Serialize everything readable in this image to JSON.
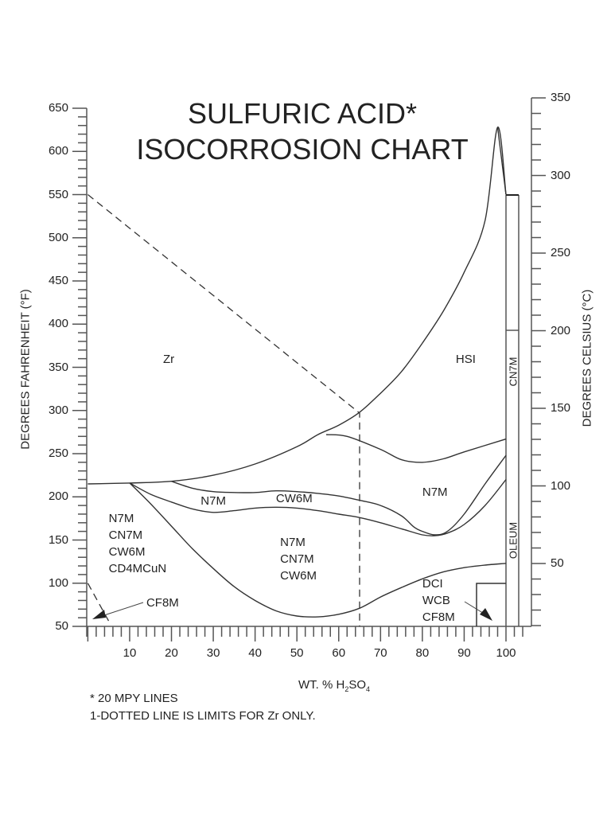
{
  "chart_data": {
    "type": "line",
    "title": "SULFURIC ACID* ISOCORROSION CHART",
    "title_lines": [
      "SULFURIC ACID*",
      "ISOCORROSION CHART"
    ],
    "xlabel": "WT. % H2SO4",
    "xlabel_parts": {
      "prefix": "WT. % H",
      "sub1": "2",
      "mid": "SO",
      "sub2": "4"
    },
    "ylabel": "DEGREES FAHRENHEIT (°F)",
    "ylabel_right": "DEGREES CELSIUS (°C)",
    "xlim": [
      0,
      105
    ],
    "ylim": [
      50,
      650
    ],
    "ylim_right": [
      10,
      350
    ],
    "x_ticks": [
      10,
      20,
      30,
      40,
      50,
      60,
      70,
      80,
      90,
      100
    ],
    "y_ticks": [
      50,
      100,
      150,
      200,
      250,
      300,
      350,
      400,
      450,
      500,
      550,
      600,
      650
    ],
    "y_ticks_right": [
      50,
      100,
      150,
      200,
      250,
      300,
      350
    ],
    "grid": false,
    "notes": [
      "* 20 MPY LINES",
      "1-DOTTED LINE IS LIMITS FOR Zr ONLY."
    ],
    "region_labels": [
      {
        "text": [
          "Zr"
        ],
        "x": 18,
        "y": 360
      },
      {
        "text": [
          "HSI"
        ],
        "x": 88,
        "y": 360
      },
      {
        "text": [
          "N7M"
        ],
        "x": 27,
        "y": 196
      },
      {
        "text": [
          "CW6M"
        ],
        "x": 45,
        "y": 198
      },
      {
        "text": [
          "N7M"
        ],
        "x": 80,
        "y": 206
      },
      {
        "text": [
          "N7M",
          "CN7M",
          "CW6M",
          "CD4MCuN"
        ],
        "x": 5,
        "y": 175
      },
      {
        "text": [
          "N7M",
          "CN7M",
          "CW6M"
        ],
        "x": 46,
        "y": 148
      },
      {
        "text": [
          "CF8M"
        ],
        "x": 14,
        "y": 78
      },
      {
        "text": [
          "DCI",
          "WCB",
          "CF8M"
        ],
        "x": 80,
        "y": 100
      },
      {
        "text": [
          "CN7M"
        ],
        "x": 101,
        "y": 345,
        "vertical": true
      },
      {
        "text": [
          "OLEUM"
        ],
        "x": 101,
        "y": 150,
        "vertical": true
      }
    ],
    "series": [
      {
        "name": "Zr / HSI boundary (20 mpy)",
        "style": "solid",
        "x": [
          0,
          10,
          20,
          30,
          40,
          50,
          55,
          60,
          65,
          70,
          75,
          80,
          85,
          90,
          95,
          98,
          100
        ],
        "y": [
          215,
          216,
          218,
          225,
          238,
          258,
          272,
          283,
          298,
          320,
          345,
          378,
          415,
          460,
          520,
          628,
          550
        ]
      },
      {
        "name": "Zr limit (dashed)",
        "style": "dashed",
        "x": [
          0,
          65,
          65
        ],
        "y": [
          550,
          297,
          50
        ]
      },
      {
        "name": "Zr limit low (dashed)",
        "style": "dashed",
        "x": [
          0,
          5
        ],
        "y": [
          100,
          56
        ]
      },
      {
        "name": "N7M upper (right)",
        "style": "solid",
        "x": [
          57,
          62,
          70,
          75,
          80,
          85,
          90,
          100
        ],
        "y": [
          272,
          270,
          255,
          243,
          240,
          244,
          252,
          267
        ]
      },
      {
        "name": "CW6M upper",
        "style": "solid",
        "x": [
          20,
          25,
          30,
          35,
          40,
          45,
          50,
          55,
          60,
          65,
          70,
          75,
          78,
          80,
          83,
          86,
          90,
          95,
          100
        ],
        "y": [
          218,
          210,
          206,
          205,
          205,
          207,
          206,
          204,
          201,
          196,
          190,
          178,
          165,
          160,
          156,
          160,
          180,
          215,
          248
        ]
      },
      {
        "name": "N7M / CW6M lower",
        "style": "solid",
        "x": [
          10,
          15,
          20,
          25,
          30,
          35,
          40,
          45,
          50,
          55,
          60,
          65,
          70,
          75,
          80,
          83,
          86,
          90,
          95,
          100
        ],
        "y": [
          216,
          203,
          194,
          186,
          182,
          184,
          187,
          188,
          187,
          184,
          180,
          176,
          170,
          163,
          156,
          155,
          158,
          168,
          190,
          220
        ]
      },
      {
        "name": "CD4MCuN / CF8M boundary",
        "style": "solid",
        "x": [
          10,
          15,
          20,
          25,
          30,
          35,
          40,
          45,
          50,
          55,
          60,
          65,
          70,
          75,
          80,
          85,
          90,
          95,
          100
        ],
        "y": [
          216,
          192,
          166,
          140,
          117,
          96,
          80,
          68,
          62,
          61,
          64,
          71,
          84,
          95,
          105,
          113,
          118,
          121,
          123
        ]
      },
      {
        "name": "HSI cusp",
        "style": "solid",
        "x": [
          98,
          100
        ],
        "y": [
          628,
          550
        ]
      }
    ]
  }
}
